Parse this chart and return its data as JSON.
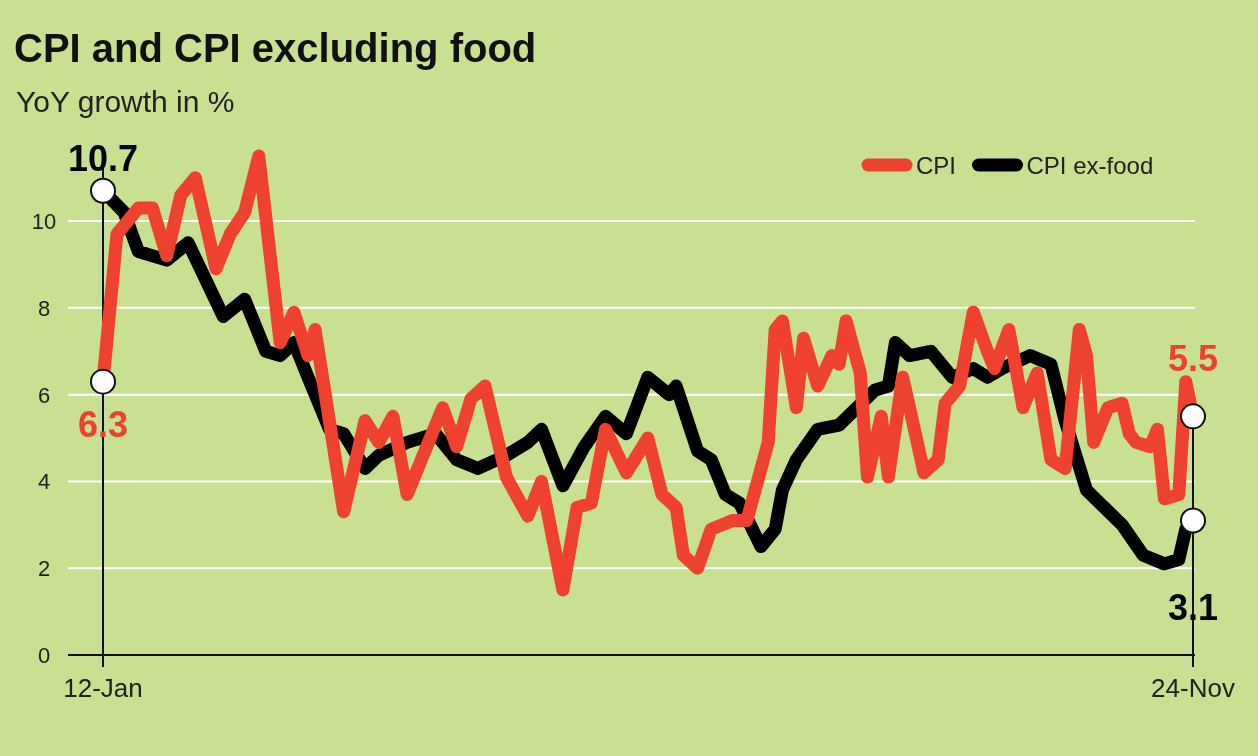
{
  "chart_data": {
    "type": "line",
    "title": "CPI and CPI excluding food",
    "subtitle": "YoY growth in %",
    "series": [
      {
        "name": "CPI",
        "color": "#ee4130",
        "x": [
          "2012-01",
          "2012-03",
          "2012-06",
          "2012-08",
          "2012-10",
          "2012-12",
          "2013-02",
          "2013-05",
          "2013-07",
          "2013-09",
          "2013-11",
          "2014-02",
          "2014-04",
          "2014-06",
          "2014-07",
          "2014-11",
          "2015-02",
          "2015-04",
          "2015-06",
          "2015-08",
          "2016-01",
          "2016-03",
          "2016-05",
          "2016-07",
          "2016-10",
          "2017-01",
          "2017-03",
          "2017-06",
          "2017-08",
          "2017-10",
          "2017-12",
          "2018-03",
          "2018-06",
          "2018-08",
          "2018-10",
          "2018-11",
          "2019-01",
          "2019-03",
          "2019-06",
          "2019-08",
          "2019-11",
          "2019-12",
          "2020-01",
          "2020-03",
          "2020-04",
          "2020-06",
          "2020-08",
          "2020-09",
          "2020-10",
          "2020-12",
          "2021-01",
          "2021-03",
          "2021-04",
          "2021-06",
          "2021-07",
          "2021-09",
          "2021-11",
          "2021-12",
          "2022-02",
          "2022-04",
          "2022-06",
          "2022-07",
          "2022-09",
          "2022-11",
          "2022-12",
          "2023-01",
          "2023-03",
          "2023-05",
          "2023-07",
          "2023-08",
          "2023-09",
          "2023-11",
          "2024-01",
          "2024-02",
          "2024-03",
          "2024-05",
          "2024-06",
          "2024-07",
          "2024-09",
          "2024-10",
          "2024-11"
        ],
        "values": [
          6.3,
          9.7,
          10.3,
          10.3,
          9.2,
          10.6,
          11.0,
          8.9,
          9.7,
          10.2,
          11.5,
          7.2,
          7.9,
          6.9,
          7.5,
          3.3,
          5.4,
          4.9,
          5.5,
          3.7,
          5.7,
          4.8,
          5.9,
          6.2,
          4.1,
          3.2,
          4.0,
          1.5,
          3.4,
          3.5,
          5.2,
          4.2,
          5.0,
          3.7,
          3.4,
          2.3,
          2.0,
          2.9,
          3.1,
          3.1,
          4.9,
          7.5,
          7.7,
          5.7,
          7.3,
          6.2,
          6.9,
          6.7,
          7.7,
          6.5,
          4.1,
          5.5,
          4.1,
          6.4,
          5.7,
          4.2,
          4.5,
          5.8,
          6.2,
          7.9,
          7.0,
          6.6,
          7.5,
          5.7,
          6.1,
          6.5,
          4.5,
          4.3,
          7.5,
          6.9,
          4.9,
          5.7,
          5.8,
          5.1,
          4.9,
          4.8,
          5.2,
          3.6,
          3.7,
          6.3,
          5.5
        ]
      },
      {
        "name": "CPI ex-food",
        "color": "#000000",
        "x": [
          "2012-01",
          "2012-04",
          "2012-06",
          "2012-10",
          "2013-01",
          "2013-06",
          "2013-09",
          "2013-12",
          "2014-02",
          "2014-04",
          "2014-06",
          "2014-09",
          "2014-11",
          "2015-02",
          "2015-04",
          "2015-08",
          "2015-12",
          "2016-03",
          "2016-06",
          "2016-10",
          "2017-01",
          "2017-03",
          "2017-06",
          "2017-09",
          "2017-12",
          "2018-03",
          "2018-06",
          "2018-09",
          "2018-10",
          "2019-01",
          "2019-03",
          "2019-05",
          "2019-07",
          "2019-10",
          "2019-12",
          "2020-01",
          "2020-03",
          "2020-06",
          "2020-09",
          "2021-02",
          "2021-04",
          "2021-05",
          "2021-07",
          "2021-10",
          "2022-01",
          "2022-04",
          "2022-06",
          "2022-08",
          "2022-12",
          "2023-03",
          "2023-05",
          "2023-08",
          "2024-01",
          "2024-04",
          "2024-07",
          "2024-09",
          "2024-10",
          "2024-11"
        ],
        "values": [
          10.7,
          10.2,
          9.3,
          9.1,
          9.5,
          7.8,
          8.2,
          7.0,
          6.9,
          7.2,
          6.4,
          5.2,
          5.1,
          4.3,
          4.6,
          4.9,
          5.1,
          4.5,
          4.3,
          4.6,
          4.9,
          5.2,
          3.9,
          4.8,
          5.5,
          5.1,
          6.4,
          6.0,
          6.2,
          4.7,
          4.5,
          3.7,
          3.5,
          2.5,
          2.9,
          3.8,
          4.5,
          5.2,
          5.3,
          6.1,
          6.2,
          7.2,
          6.9,
          7.0,
          6.4,
          6.6,
          6.4,
          6.6,
          6.9,
          6.7,
          5.4,
          3.8,
          3.0,
          2.3,
          2.1,
          2.2,
          2.9,
          3.1
        ]
      }
    ],
    "xlim": [
      "2012-01",
      "2024-11"
    ],
    "xticks": [
      {
        "value": "2012-01",
        "label": "12-Jan"
      },
      {
        "value": "2024-11",
        "label": "24-Nov"
      }
    ],
    "ylim": [
      0,
      11.5
    ],
    "yticks": [
      0,
      2,
      4,
      6,
      8,
      10
    ],
    "grid": "y",
    "legend": "top right",
    "line_style": "solid",
    "annotations": [
      {
        "text": "10.7",
        "x": "2012-01",
        "y": 10.7
      },
      {
        "text": "6.3",
        "x": "2012-01",
        "y": 6.3
      },
      {
        "text": "5.5",
        "x": "2024-11",
        "y": 5.5
      },
      {
        "text": "3.1",
        "x": "2024-11",
        "y": 3.1
      }
    ]
  }
}
